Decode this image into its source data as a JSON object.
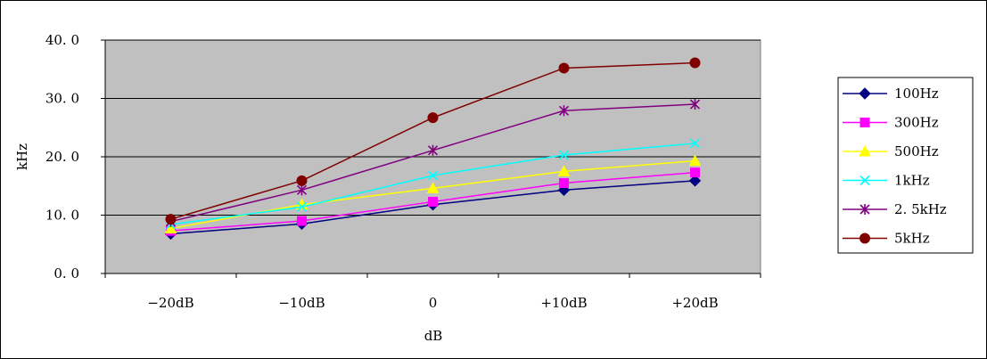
{
  "chart_data": {
    "type": "line",
    "title": "",
    "xlabel": "dB",
    "ylabel": "kHz",
    "categories": [
      "−20dB",
      "−10dB",
      "0",
      "+10dB",
      "+20dB"
    ],
    "ylim": [
      0,
      40
    ],
    "yticks": [
      "0. 0",
      "10. 0",
      "20. 0",
      "30. 0",
      "40. 0"
    ],
    "grid": true,
    "plot_background": "#c0c0c0",
    "legend_position": "right",
    "series": [
      {
        "name": "100Hz",
        "color": "#000080",
        "marker": "diamond",
        "values": [
          6.8,
          8.5,
          11.8,
          14.3,
          15.9
        ]
      },
      {
        "name": "300Hz",
        "color": "#ff00ff",
        "marker": "square",
        "values": [
          7.3,
          9.0,
          12.3,
          15.5,
          17.3
        ]
      },
      {
        "name": "500Hz",
        "color": "#ffff00",
        "marker": "triangle",
        "values": [
          7.7,
          11.8,
          14.6,
          17.5,
          19.3
        ]
      },
      {
        "name": "1kHz",
        "color": "#00ffff",
        "marker": "x",
        "values": [
          8.4,
          11.4,
          16.8,
          20.3,
          22.3
        ]
      },
      {
        "name": "2. 5kHz",
        "color": "#800080",
        "marker": "star",
        "values": [
          8.9,
          14.3,
          21.1,
          27.9,
          29.0
        ]
      },
      {
        "name": "5kHz",
        "color": "#800000",
        "marker": "circle",
        "values": [
          9.3,
          15.9,
          26.7,
          35.2,
          36.1
        ]
      }
    ]
  }
}
